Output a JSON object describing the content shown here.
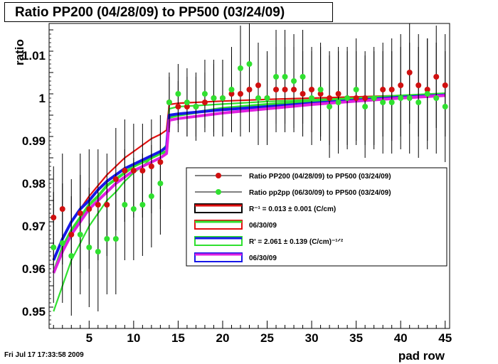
{
  "title": "Ratio PP200 (04/28/09) to PP500 (03/24/09)",
  "footer": "Fri Jul 17 17:33:58 2009",
  "chart_data": {
    "type": "scatter",
    "xlabel": "pad row",
    "ylabel": "ratio",
    "xlim": [
      0.5,
      45.5
    ],
    "ylim": [
      0.946,
      1.0175
    ],
    "xticks": [
      5,
      10,
      15,
      20,
      25,
      30,
      35,
      40,
      45
    ],
    "yticks": [
      0.95,
      0.96,
      0.97,
      0.98,
      0.99,
      1,
      1.01
    ],
    "ytick_labels": [
      "0.95",
      "0.96",
      "0.97",
      "0.98",
      "0.99",
      "1",
      "1.01"
    ],
    "series": [
      {
        "name": "Ratio PP200 (04/28/09) to PP500 (03/24/09)",
        "color": "#d01010",
        "marker": "circle",
        "x": [
          1,
          2,
          3,
          4,
          5,
          6,
          7,
          8,
          9,
          10,
          11,
          12,
          13,
          14,
          15,
          16,
          17,
          18,
          19,
          20,
          21,
          22,
          23,
          24,
          25,
          26,
          27,
          28,
          29,
          30,
          31,
          32,
          33,
          34,
          35,
          36,
          37,
          38,
          39,
          40,
          41,
          42,
          43,
          44,
          45
        ],
        "y": [
          0.972,
          0.974,
          0.968,
          0.973,
          0.974,
          0.975,
          0.975,
          0.981,
          0.983,
          0.983,
          0.983,
          0.984,
          0.985,
          0.999,
          0.998,
          0.998,
          0.998,
          0.999,
          1.0,
          1.0,
          1.001,
          1.001,
          1.002,
          1.003,
          1.0,
          1.002,
          1.002,
          1.002,
          1.001,
          1.002,
          1.001,
          1.0,
          1.001,
          1.0,
          1.0,
          1.0,
          1.0,
          1.002,
          1.002,
          1.003,
          1.006,
          1.003,
          1.002,
          1.005,
          1.003
        ],
        "err": [
          0.012,
          0.013,
          0.013,
          0.014,
          0.014,
          0.013,
          0.012,
          0.012,
          0.012,
          0.011,
          0.011,
          0.011,
          0.011,
          0.006,
          0.006,
          0.007,
          0.007,
          0.007,
          0.008,
          0.009,
          0.009,
          0.01,
          0.01,
          0.01,
          0.01,
          0.01,
          0.01,
          0.01,
          0.01,
          0.01,
          0.011,
          0.011,
          0.011,
          0.011,
          0.011,
          0.011,
          0.011,
          0.011,
          0.012,
          0.012,
          0.012,
          0.012,
          0.012,
          0.012,
          0.012
        ]
      },
      {
        "name": "Ratio pp2pp (06/30/09) to PP500 (03/24/09)",
        "color": "#30e030",
        "marker": "circle",
        "x": [
          1,
          2,
          3,
          4,
          5,
          6,
          7,
          8,
          9,
          10,
          11,
          12,
          13,
          14,
          15,
          16,
          17,
          18,
          19,
          20,
          21,
          22,
          23,
          24,
          25,
          26,
          27,
          28,
          29,
          30,
          31,
          32,
          33,
          34,
          35,
          36,
          37,
          38,
          39,
          40,
          41,
          42,
          43,
          44,
          45
        ],
        "y": [
          0.965,
          0.966,
          0.963,
          0.968,
          0.965,
          0.964,
          0.967,
          0.967,
          0.975,
          0.974,
          0.975,
          0.977,
          0.98,
          0.999,
          1.001,
          0.999,
          0.998,
          1.001,
          1.0,
          1.0,
          1.002,
          1.007,
          1.008,
          1.0,
          1.0,
          1.005,
          1.005,
          1.004,
          1.005,
          1.0,
          1.002,
          0.998,
          0.999,
          1.0,
          1.002,
          0.998,
          1.0,
          0.999,
          0.999,
          1.0,
          1.0,
          0.999,
          1.001,
          1.0,
          0.998
        ],
        "err": [
          0.013,
          0.014,
          0.014,
          0.014,
          0.014,
          0.014,
          0.013,
          0.013,
          0.013,
          0.012,
          0.012,
          0.012,
          0.012,
          0.007,
          0.007,
          0.008,
          0.008,
          0.008,
          0.009,
          0.009,
          0.01,
          0.01,
          0.01,
          0.011,
          0.011,
          0.011,
          0.011,
          0.011,
          0.011,
          0.011,
          0.011,
          0.012,
          0.012,
          0.012,
          0.012,
          0.012,
          0.012,
          0.012,
          0.012,
          0.012,
          0.013,
          0.013,
          0.013,
          0.013,
          0.013
        ]
      }
    ],
    "fits": [
      {
        "name": "fit-red-thin",
        "color": "#e01010",
        "width": 2.2,
        "x": [
          1,
          2,
          3,
          4,
          5,
          6,
          7,
          8,
          9,
          10,
          11,
          12,
          13,
          13.7,
          14,
          15,
          20,
          25,
          30,
          35,
          40,
          45
        ],
        "y": [
          0.962,
          0.967,
          0.971,
          0.974,
          0.977,
          0.9795,
          0.982,
          0.984,
          0.986,
          0.9875,
          0.989,
          0.9905,
          0.9915,
          0.9925,
          0.9985,
          0.9988,
          0.9993,
          0.9997,
          1.0,
          1.0003,
          1.0006,
          1.0008
        ]
      },
      {
        "name": "fit-green-thin",
        "color": "#30e030",
        "width": 2.2,
        "x": [
          1,
          2,
          3,
          4,
          5,
          6,
          7,
          8,
          9,
          10,
          11,
          12,
          13,
          13.7,
          14,
          15,
          20,
          25,
          30,
          35,
          40,
          45
        ],
        "y": [
          0.95,
          0.956,
          0.962,
          0.966,
          0.97,
          0.973,
          0.976,
          0.978,
          0.9805,
          0.9825,
          0.984,
          0.986,
          0.9875,
          0.989,
          0.9975,
          0.998,
          0.9986,
          0.9992,
          0.9996,
          1.0,
          1.0004,
          1.0007
        ]
      },
      {
        "name": "fit-green-thick",
        "color": "#30e030",
        "width": 4,
        "x": [
          1,
          2,
          3,
          4,
          5,
          6,
          7,
          8,
          9,
          10,
          11,
          12,
          13,
          13.7,
          14,
          15,
          20,
          25,
          30,
          35,
          40,
          45
        ],
        "y": [
          0.959,
          0.965,
          0.969,
          0.972,
          0.975,
          0.977,
          0.9795,
          0.981,
          0.9825,
          0.984,
          0.985,
          0.986,
          0.987,
          0.9875,
          0.9955,
          0.996,
          0.9976,
          0.9985,
          0.9993,
          0.9999,
          1.0005,
          1.001
        ]
      },
      {
        "name": "fit-blue-thick",
        "color": "#1818e8",
        "width": 4,
        "x": [
          1,
          2,
          3,
          4,
          5,
          6,
          7,
          8,
          9,
          10,
          11,
          12,
          13,
          13.7,
          14,
          15,
          20,
          25,
          30,
          35,
          40,
          45
        ],
        "y": [
          0.962,
          0.967,
          0.971,
          0.974,
          0.976,
          0.9785,
          0.9805,
          0.982,
          0.9835,
          0.9845,
          0.9855,
          0.9865,
          0.9875,
          0.9885,
          0.996,
          0.9963,
          0.9973,
          0.998,
          0.9988,
          0.9995,
          1.0002,
          1.0007
        ]
      },
      {
        "name": "fit-magenta-thick",
        "color": "#e020e0",
        "width": 4,
        "x": [
          1,
          2,
          3,
          4,
          5,
          6,
          7,
          8,
          9,
          10,
          11,
          12,
          13,
          13.7,
          14,
          15,
          20,
          25,
          30,
          35,
          40,
          45
        ],
        "y": [
          0.959,
          0.964,
          0.968,
          0.971,
          0.974,
          0.976,
          0.978,
          0.98,
          0.9815,
          0.983,
          0.984,
          0.985,
          0.986,
          0.987,
          0.9948,
          0.9952,
          0.9965,
          0.9975,
          0.9985,
          0.9993,
          1.0,
          1.0006
        ]
      }
    ],
    "legend": {
      "placement": "center-right",
      "entries": [
        {
          "label": "Ratio PP200 (04/28/09) to PP500 (03/24/09)",
          "kind": "marker",
          "color": "#d01010"
        },
        {
          "label": "Ratio pp2pp (06/30/09) to PP500 (03/24/09)",
          "kind": "marker",
          "color": "#30e030"
        },
        {
          "label": "R⁻¹ = 0.013  ± 0.001 (C/cm)",
          "kind": "line",
          "color": "#e01010",
          "box": "#000000"
        },
        {
          "label": "06/30/09",
          "kind": "line",
          "color": "#30e030",
          "box": "#e01010"
        },
        {
          "label": "R' = 2.061  ± 0.139 (C/cm)⁻¹ᐟ²",
          "kind": "line",
          "color": "#1818e8",
          "box": "#30e030"
        },
        {
          "label": "06/30/09",
          "kind": "line",
          "color": "#e020e0",
          "box": "#1818e8"
        }
      ]
    }
  }
}
